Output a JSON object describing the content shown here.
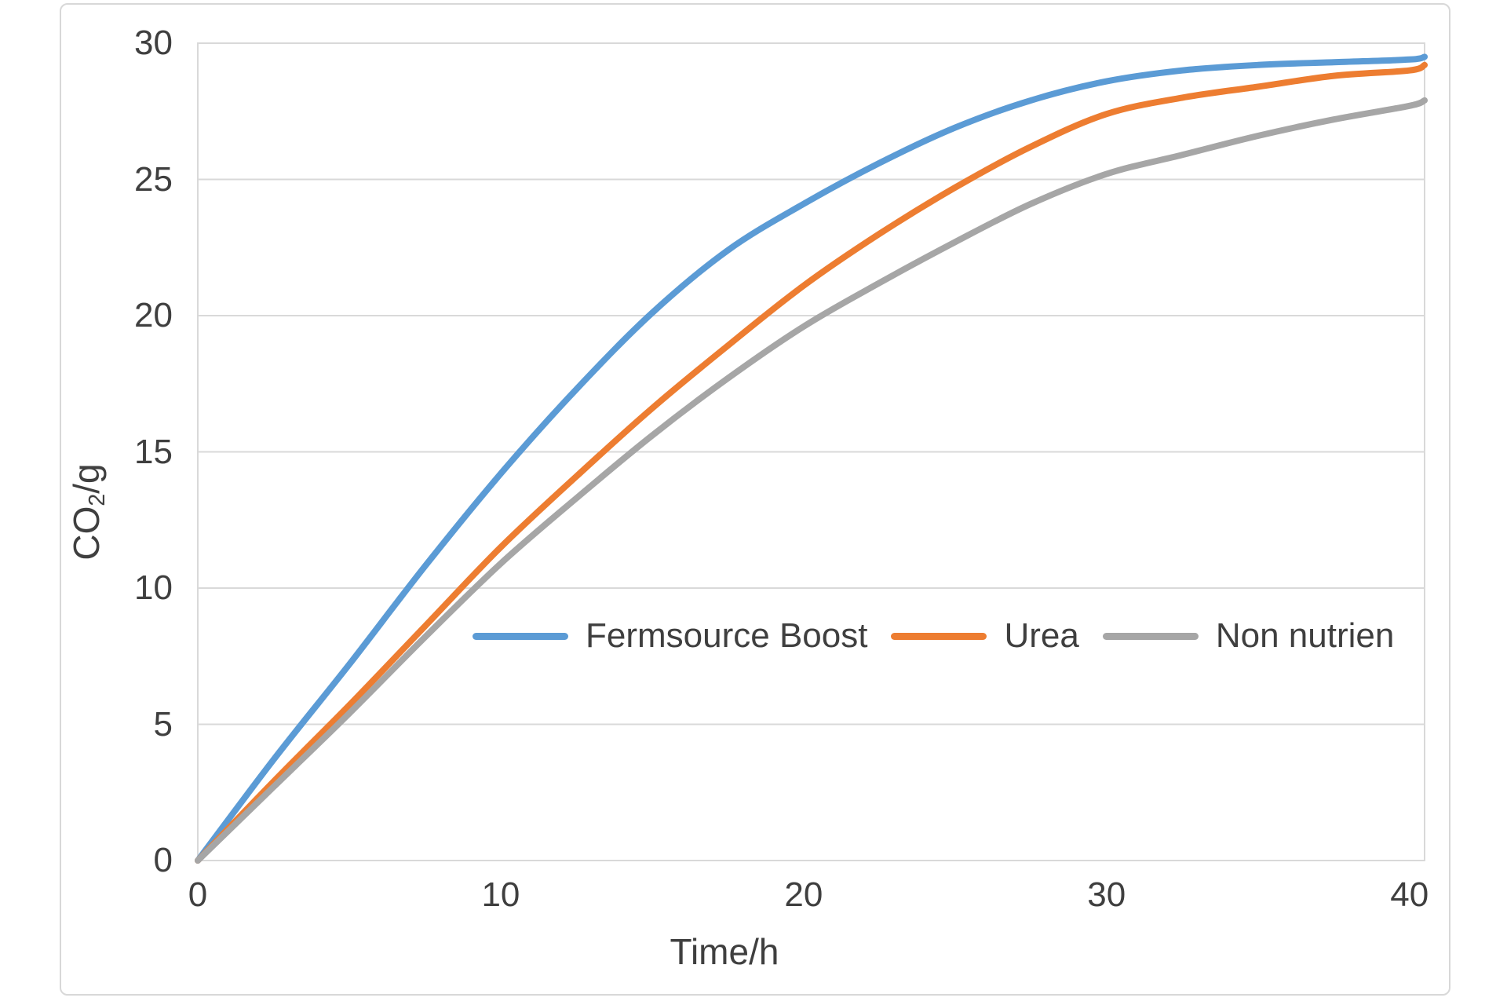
{
  "chart_data": {
    "type": "line",
    "title": "",
    "xlabel": "Time/h",
    "ylabel": "CO2/g",
    "ylabel_parts": [
      {
        "text": "CO",
        "sub": false
      },
      {
        "text": "2",
        "sub": true
      },
      {
        "text": "/g",
        "sub": false
      }
    ],
    "xlim": [
      0,
      40.5
    ],
    "ylim": [
      0,
      30
    ],
    "xticks": [
      0,
      10,
      20,
      30,
      40
    ],
    "yticks": [
      0,
      5,
      10,
      15,
      20,
      25,
      30
    ],
    "grid": "horizontal-only",
    "legend_position": "inside-plot-lower-middle",
    "x": [
      0,
      2.5,
      5,
      7.5,
      10,
      12.5,
      15,
      17.5,
      20,
      22.5,
      25,
      27.5,
      30,
      32.5,
      35,
      37.5,
      40,
      40.5
    ],
    "series": [
      {
        "name": "Fermsource Boost",
        "color": "#5B9BD5",
        "values": [
          0,
          3.7,
          7.2,
          10.8,
          14.2,
          17.3,
          20.1,
          22.4,
          24.1,
          25.6,
          26.9,
          27.9,
          28.6,
          29.0,
          29.2,
          29.3,
          29.4,
          29.5
        ]
      },
      {
        "name": "Urea",
        "color": "#ED7D31",
        "values": [
          0,
          2.9,
          5.7,
          8.6,
          11.5,
          14.1,
          16.6,
          18.9,
          21.1,
          23.0,
          24.7,
          26.2,
          27.4,
          28.0,
          28.4,
          28.8,
          29.0,
          29.2
        ]
      },
      {
        "name": "Non nutrien",
        "color": "#A6A6A6",
        "values": [
          0,
          2.7,
          5.4,
          8.2,
          10.9,
          13.3,
          15.6,
          17.7,
          19.6,
          21.2,
          22.7,
          24.1,
          25.2,
          25.9,
          26.6,
          27.2,
          27.7,
          27.9
        ]
      }
    ]
  },
  "colors": {
    "gridline": "#D9D9D9",
    "plot_border": "#D9D9D9",
    "frame_border": "#D8D8D8",
    "text": "#3F3F3F",
    "background": "#FFFFFF"
  }
}
